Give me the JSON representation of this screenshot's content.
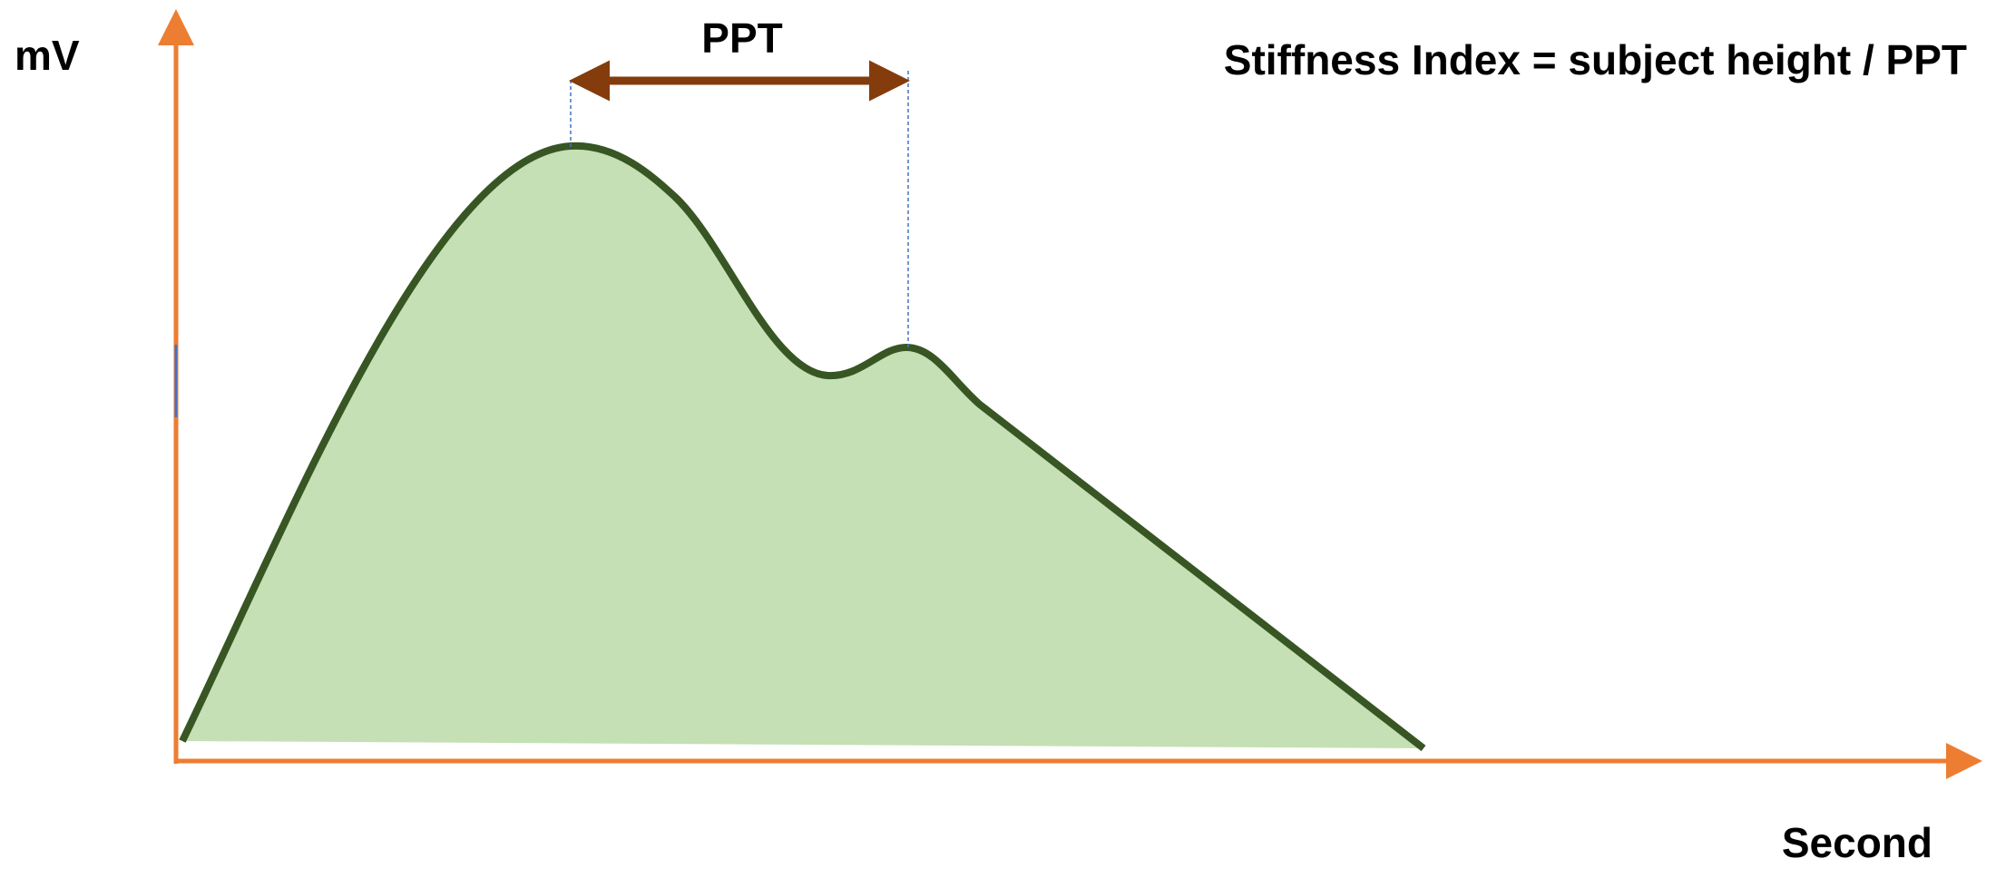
{
  "y_axis_label": "mV",
  "x_axis_label": "Second",
  "interval_label": "PPT",
  "formula": "Stiffness Index = subject height / PPT"
}
